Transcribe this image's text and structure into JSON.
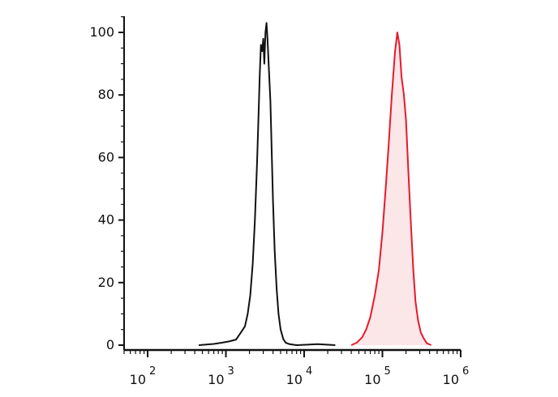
{
  "chart_data": {
    "type": "area",
    "x_scale": "log",
    "xlim": [
      50,
      1000000
    ],
    "ylim": [
      0,
      110
    ],
    "x_ticks": [
      {
        "value": 100,
        "base": "10",
        "exp": "2"
      },
      {
        "value": 1000,
        "base": "10",
        "exp": "3"
      },
      {
        "value": 10000,
        "base": "10",
        "exp": "4"
      },
      {
        "value": 100000,
        "base": "10",
        "exp": "5"
      },
      {
        "value": 1000000,
        "base": "10",
        "exp": "6"
      }
    ],
    "y_ticks": [
      {
        "value": 0,
        "label": "0"
      },
      {
        "value": 20,
        "label": "20"
      },
      {
        "value": 40,
        "label": "40"
      },
      {
        "value": 60,
        "label": "60"
      },
      {
        "value": 80,
        "label": "80"
      },
      {
        "value": 100,
        "label": "100"
      }
    ],
    "grid": false,
    "series": [
      {
        "color": "#111111",
        "fill": "none",
        "points": [
          [
            450,
            0
          ],
          [
            700,
            0.4
          ],
          [
            900,
            0.8
          ],
          [
            1100,
            1.2
          ],
          [
            1350,
            1.8
          ],
          [
            1550,
            4
          ],
          [
            1750,
            6
          ],
          [
            1900,
            10
          ],
          [
            2050,
            16
          ],
          [
            2200,
            26
          ],
          [
            2350,
            40
          ],
          [
            2500,
            58
          ],
          [
            2600,
            72
          ],
          [
            2700,
            86
          ],
          [
            2800,
            96
          ],
          [
            2900,
            94
          ],
          [
            3000,
            98
          ],
          [
            3100,
            90
          ],
          [
            3200,
            100
          ],
          [
            3300,
            103
          ],
          [
            3400,
            98
          ],
          [
            3550,
            88
          ],
          [
            3700,
            78
          ],
          [
            3850,
            62
          ],
          [
            4000,
            46
          ],
          [
            4200,
            30
          ],
          [
            4450,
            18
          ],
          [
            4700,
            10
          ],
          [
            5000,
            5
          ],
          [
            5400,
            2
          ],
          [
            5800,
            0.8
          ],
          [
            6500,
            0.3
          ],
          [
            8000,
            0
          ],
          [
            15000,
            0.3
          ],
          [
            25000,
            0
          ]
        ]
      },
      {
        "color": "#e8192c",
        "fill": "#fbe6e8",
        "points": [
          [
            40000,
            0
          ],
          [
            47000,
            0.8
          ],
          [
            55000,
            2.5
          ],
          [
            62000,
            5
          ],
          [
            70000,
            9
          ],
          [
            80000,
            16
          ],
          [
            90000,
            24
          ],
          [
            100000,
            36
          ],
          [
            110000,
            50
          ],
          [
            120000,
            64
          ],
          [
            132000,
            80
          ],
          [
            145000,
            94
          ],
          [
            155000,
            100
          ],
          [
            165000,
            96
          ],
          [
            175000,
            86
          ],
          [
            188000,
            80
          ],
          [
            200000,
            72
          ],
          [
            215000,
            55
          ],
          [
            230000,
            40
          ],
          [
            248000,
            24
          ],
          [
            265000,
            14
          ],
          [
            285000,
            8
          ],
          [
            310000,
            4
          ],
          [
            340000,
            2
          ],
          [
            370000,
            0.6
          ],
          [
            420000,
            0
          ]
        ]
      }
    ]
  }
}
